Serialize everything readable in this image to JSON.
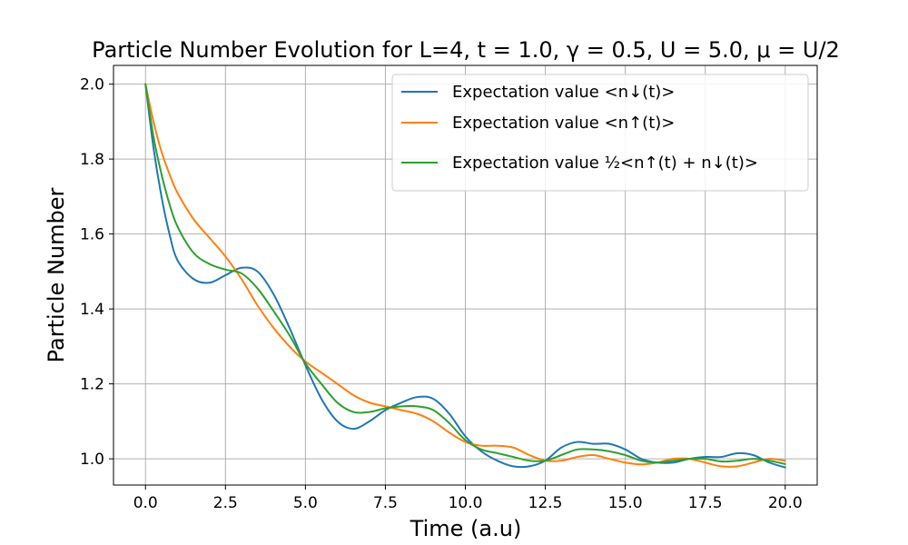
{
  "chart_data": {
    "type": "line",
    "title": "Particle Number Evolution for L=4, t = 1.0, γ = 0.5, U = 5.0, μ = U/2",
    "xlabel": "Time (a.u)",
    "ylabel": "Particle Number",
    "xlim": [
      -1.0,
      21.0
    ],
    "ylim": [
      0.93,
      2.05
    ],
    "xticks": [
      "0.0",
      "2.5",
      "5.0",
      "7.5",
      "10.0",
      "12.5",
      "15.0",
      "17.5",
      "20.0"
    ],
    "yticks": [
      "1.0",
      "1.2",
      "1.4",
      "1.6",
      "1.8",
      "2.0"
    ],
    "grid": true,
    "legend_position": "top-right",
    "series": [
      {
        "name": "Expectation value <n↓(t)>",
        "color": "#1f77b4",
        "x": [
          0,
          0.25,
          0.5,
          0.75,
          1.0,
          1.5,
          2.0,
          2.5,
          3.0,
          3.5,
          4.0,
          4.5,
          5.0,
          5.5,
          6.0,
          6.5,
          7.0,
          7.5,
          8.0,
          8.5,
          9.0,
          9.5,
          10.0,
          10.5,
          11.0,
          11.5,
          12.0,
          12.5,
          13.0,
          13.5,
          14.0,
          14.5,
          15.0,
          15.5,
          16.0,
          16.5,
          17.0,
          17.5,
          18.0,
          18.5,
          19.0,
          19.5,
          20.0
        ],
        "y": [
          2.0,
          1.83,
          1.7,
          1.6,
          1.53,
          1.48,
          1.47,
          1.49,
          1.51,
          1.5,
          1.44,
          1.35,
          1.25,
          1.16,
          1.1,
          1.08,
          1.1,
          1.13,
          1.15,
          1.165,
          1.16,
          1.12,
          1.06,
          1.02,
          0.995,
          0.98,
          0.98,
          0.995,
          1.03,
          1.045,
          1.04,
          1.04,
          1.025,
          1.0,
          0.99,
          0.99,
          1.0,
          1.005,
          1.005,
          1.015,
          1.01,
          0.99,
          0.977
        ]
      },
      {
        "name": "Expectation value <n↑(t)>",
        "color": "#ff7f0e",
        "x": [
          0,
          0.25,
          0.5,
          0.75,
          1.0,
          1.5,
          2.0,
          2.5,
          3.0,
          3.5,
          4.0,
          4.5,
          5.0,
          5.5,
          6.0,
          6.5,
          7.0,
          7.5,
          8.0,
          8.5,
          9.0,
          9.5,
          10.0,
          10.5,
          11.0,
          11.5,
          12.0,
          12.5,
          13.0,
          13.5,
          14.0,
          14.5,
          15.0,
          15.5,
          16.0,
          16.5,
          17.0,
          17.5,
          18.0,
          18.5,
          19.0,
          19.5,
          20.0
        ],
        "y": [
          2.0,
          1.9,
          1.82,
          1.76,
          1.71,
          1.64,
          1.59,
          1.54,
          1.48,
          1.41,
          1.35,
          1.3,
          1.26,
          1.23,
          1.2,
          1.17,
          1.15,
          1.14,
          1.13,
          1.12,
          1.1,
          1.07,
          1.045,
          1.035,
          1.035,
          1.03,
          1.01,
          0.995,
          0.995,
          1.005,
          1.01,
          1.0,
          0.99,
          0.985,
          0.99,
          1.0,
          1.0,
          0.99,
          0.98,
          0.98,
          0.99,
          1.0,
          0.995
        ]
      },
      {
        "name": "Expectation value ½<n↑(t) + n↓(t)>",
        "color": "#2ca02c",
        "x": [
          0,
          0.25,
          0.5,
          0.75,
          1.0,
          1.5,
          2.0,
          2.5,
          3.0,
          3.5,
          4.0,
          4.5,
          5.0,
          5.5,
          6.0,
          6.5,
          7.0,
          7.5,
          8.0,
          8.5,
          9.0,
          9.5,
          10.0,
          10.5,
          11.0,
          11.5,
          12.0,
          12.5,
          13.0,
          13.5,
          14.0,
          14.5,
          15.0,
          15.5,
          16.0,
          16.5,
          17.0,
          17.5,
          18.0,
          18.5,
          19.0,
          19.5,
          20.0
        ],
        "y": [
          2.0,
          1.86,
          1.76,
          1.68,
          1.62,
          1.55,
          1.52,
          1.505,
          1.495,
          1.455,
          1.395,
          1.33,
          1.255,
          1.2,
          1.15,
          1.125,
          1.125,
          1.135,
          1.14,
          1.14,
          1.13,
          1.095,
          1.05,
          1.025,
          1.015,
          1.005,
          0.995,
          0.995,
          1.01,
          1.025,
          1.025,
          1.02,
          1.01,
          0.995,
          0.99,
          0.995,
          1.0,
          1.0,
          0.993,
          0.995,
          1.0,
          0.995,
          0.986
        ]
      }
    ]
  }
}
